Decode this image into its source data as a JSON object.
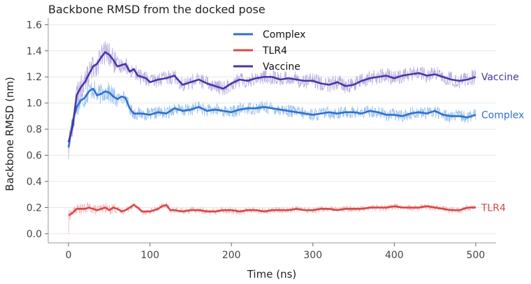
{
  "chart_data": {
    "type": "line",
    "title": "Backbone RMSD from the docked pose",
    "xlabel": "Time (ns)",
    "ylabel": "Backbone RMSD (nm)",
    "xlim": [
      -25,
      525
    ],
    "ylim": [
      -0.07,
      1.65
    ],
    "xticks": [
      "0",
      "100",
      "200",
      "300",
      "400",
      "500"
    ],
    "yticks": [
      "0.0",
      "0.2",
      "0.4",
      "0.6",
      "0.8",
      "1.0",
      "1.2",
      "1.4",
      "1.6"
    ],
    "grid": "horizontal",
    "legend_position": "top-center",
    "series": [
      {
        "name": "Complex",
        "color": "#2f6fd0",
        "raw_color": "#7fb1e6",
        "end_label": "Complex",
        "smoothed": [
          [
            0,
            0.66
          ],
          [
            5,
            0.86
          ],
          [
            10,
            0.97
          ],
          [
            15,
            1.02
          ],
          [
            20,
            1.04
          ],
          [
            25,
            1.09
          ],
          [
            30,
            1.11
          ],
          [
            35,
            1.06
          ],
          [
            40,
            1.07
          ],
          [
            45,
            1.09
          ],
          [
            50,
            1.08
          ],
          [
            55,
            1.05
          ],
          [
            60,
            1.03
          ],
          [
            65,
            1.05
          ],
          [
            70,
            1.04
          ],
          [
            75,
            0.96
          ],
          [
            80,
            0.92
          ],
          [
            90,
            0.92
          ],
          [
            100,
            0.91
          ],
          [
            110,
            0.93
          ],
          [
            120,
            0.92
          ],
          [
            130,
            0.96
          ],
          [
            140,
            0.94
          ],
          [
            150,
            0.95
          ],
          [
            160,
            0.97
          ],
          [
            170,
            0.94
          ],
          [
            180,
            0.95
          ],
          [
            190,
            0.94
          ],
          [
            200,
            0.93
          ],
          [
            210,
            0.95
          ],
          [
            220,
            0.96
          ],
          [
            230,
            0.96
          ],
          [
            240,
            0.97
          ],
          [
            250,
            0.96
          ],
          [
            260,
            0.95
          ],
          [
            270,
            0.94
          ],
          [
            280,
            0.93
          ],
          [
            290,
            0.92
          ],
          [
            300,
            0.91
          ],
          [
            310,
            0.92
          ],
          [
            320,
            0.93
          ],
          [
            330,
            0.92
          ],
          [
            340,
            0.93
          ],
          [
            350,
            0.93
          ],
          [
            360,
            0.92
          ],
          [
            370,
            0.94
          ],
          [
            380,
            0.93
          ],
          [
            390,
            0.91
          ],
          [
            400,
            0.91
          ],
          [
            410,
            0.9
          ],
          [
            420,
            0.92
          ],
          [
            430,
            0.93
          ],
          [
            440,
            0.92
          ],
          [
            450,
            0.94
          ],
          [
            460,
            0.91
          ],
          [
            470,
            0.9
          ],
          [
            480,
            0.9
          ],
          [
            490,
            0.89
          ],
          [
            500,
            0.91
          ]
        ]
      },
      {
        "name": "TLR4",
        "color": "#d94848",
        "raw_color": "#f0a2a2",
        "end_label": "TLR4",
        "smoothed": [
          [
            0,
            0.14
          ],
          [
            5,
            0.16
          ],
          [
            10,
            0.19
          ],
          [
            15,
            0.19
          ],
          [
            20,
            0.19
          ],
          [
            25,
            0.2
          ],
          [
            30,
            0.19
          ],
          [
            35,
            0.18
          ],
          [
            40,
            0.19
          ],
          [
            45,
            0.2
          ],
          [
            50,
            0.18
          ],
          [
            55,
            0.2
          ],
          [
            60,
            0.19
          ],
          [
            65,
            0.17
          ],
          [
            70,
            0.18
          ],
          [
            75,
            0.2
          ],
          [
            80,
            0.22
          ],
          [
            85,
            0.2
          ],
          [
            90,
            0.17
          ],
          [
            100,
            0.17
          ],
          [
            110,
            0.19
          ],
          [
            115,
            0.21
          ],
          [
            120,
            0.22
          ],
          [
            125,
            0.18
          ],
          [
            130,
            0.18
          ],
          [
            140,
            0.17
          ],
          [
            150,
            0.18
          ],
          [
            160,
            0.18
          ],
          [
            170,
            0.17
          ],
          [
            180,
            0.17
          ],
          [
            190,
            0.18
          ],
          [
            200,
            0.18
          ],
          [
            210,
            0.17
          ],
          [
            220,
            0.18
          ],
          [
            230,
            0.18
          ],
          [
            240,
            0.17
          ],
          [
            250,
            0.18
          ],
          [
            260,
            0.18
          ],
          [
            270,
            0.18
          ],
          [
            280,
            0.19
          ],
          [
            290,
            0.18
          ],
          [
            300,
            0.18
          ],
          [
            310,
            0.19
          ],
          [
            320,
            0.19
          ],
          [
            330,
            0.18
          ],
          [
            340,
            0.19
          ],
          [
            350,
            0.19
          ],
          [
            360,
            0.19
          ],
          [
            370,
            0.2
          ],
          [
            380,
            0.2
          ],
          [
            390,
            0.2
          ],
          [
            400,
            0.21
          ],
          [
            410,
            0.2
          ],
          [
            420,
            0.2
          ],
          [
            430,
            0.2
          ],
          [
            440,
            0.21
          ],
          [
            450,
            0.2
          ],
          [
            460,
            0.19
          ],
          [
            470,
            0.18
          ],
          [
            480,
            0.18
          ],
          [
            490,
            0.2
          ],
          [
            500,
            0.2
          ]
        ]
      },
      {
        "name": "Vaccine",
        "color": "#4a34a8",
        "raw_color": "#a898d8",
        "end_label": "Vaccine",
        "smoothed": [
          [
            0,
            0.7
          ],
          [
            5,
            0.82
          ],
          [
            10,
            1.06
          ],
          [
            15,
            1.12
          ],
          [
            20,
            1.16
          ],
          [
            25,
            1.22
          ],
          [
            30,
            1.28
          ],
          [
            35,
            1.3
          ],
          [
            40,
            1.35
          ],
          [
            45,
            1.39
          ],
          [
            50,
            1.37
          ],
          [
            55,
            1.33
          ],
          [
            60,
            1.28
          ],
          [
            65,
            1.29
          ],
          [
            70,
            1.3
          ],
          [
            75,
            1.24
          ],
          [
            80,
            1.26
          ],
          [
            85,
            1.21
          ],
          [
            90,
            1.2
          ],
          [
            95,
            1.19
          ],
          [
            100,
            1.16
          ],
          [
            110,
            1.18
          ],
          [
            120,
            1.19
          ],
          [
            130,
            1.21
          ],
          [
            140,
            1.14
          ],
          [
            150,
            1.16
          ],
          [
            160,
            1.18
          ],
          [
            170,
            1.15
          ],
          [
            180,
            1.13
          ],
          [
            190,
            1.11
          ],
          [
            200,
            1.15
          ],
          [
            210,
            1.18
          ],
          [
            220,
            1.17
          ],
          [
            230,
            1.19
          ],
          [
            240,
            1.2
          ],
          [
            250,
            1.2
          ],
          [
            260,
            1.18
          ],
          [
            270,
            1.19
          ],
          [
            280,
            1.18
          ],
          [
            290,
            1.17
          ],
          [
            300,
            1.17
          ],
          [
            310,
            1.15
          ],
          [
            320,
            1.14
          ],
          [
            330,
            1.16
          ],
          [
            340,
            1.13
          ],
          [
            350,
            1.14
          ],
          [
            360,
            1.17
          ],
          [
            370,
            1.19
          ],
          [
            380,
            1.2
          ],
          [
            390,
            1.21
          ],
          [
            400,
            1.19
          ],
          [
            410,
            1.21
          ],
          [
            420,
            1.22
          ],
          [
            430,
            1.23
          ],
          [
            440,
            1.21
          ],
          [
            450,
            1.22
          ],
          [
            460,
            1.2
          ],
          [
            470,
            1.18
          ],
          [
            480,
            1.17
          ],
          [
            490,
            1.18
          ],
          [
            500,
            1.2
          ]
        ]
      }
    ]
  }
}
